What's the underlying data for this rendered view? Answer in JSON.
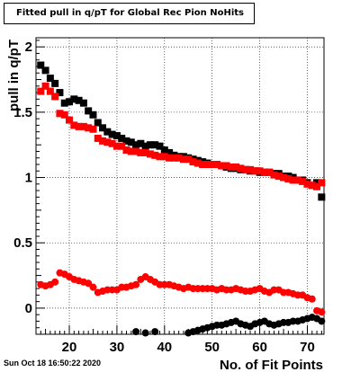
{
  "title": "Fitted pull in q/pT for Global Rec Pion NoHits",
  "timestamp": "Sun Oct 18 16:50:22 2020",
  "chart_data": {
    "type": "scatter",
    "xlabel": "No. of Fit Points",
    "ylabel": "pull in q/pT",
    "xlim": [
      13,
      73.5
    ],
    "ylim": [
      -0.2,
      2.07
    ],
    "xticks": [
      20,
      30,
      40,
      50,
      60,
      70
    ],
    "yticks": [
      0,
      0.5,
      1,
      1.5,
      2
    ],
    "xtick_labels": [
      "20",
      "30",
      "40",
      "50",
      "60",
      "70"
    ],
    "ytick_labels": [
      "0",
      "0.5",
      "1",
      "1.5",
      "2"
    ],
    "grid": true,
    "series": [
      {
        "color": "#000000",
        "marker": "square",
        "x": [
          14,
          15,
          16,
          17,
          18,
          19,
          20,
          21,
          22,
          23,
          24,
          25,
          26,
          27,
          28,
          29,
          30,
          31,
          32,
          33,
          34,
          35,
          36,
          37,
          38,
          39,
          40,
          41,
          42,
          43,
          44,
          45,
          46,
          47,
          48,
          49,
          50,
          51,
          52,
          53,
          54,
          55,
          56,
          57,
          58,
          59,
          60,
          61,
          62,
          63,
          64,
          65,
          66,
          67,
          68,
          69,
          70,
          71,
          72,
          73
        ],
        "y": [
          1.86,
          1.82,
          1.76,
          1.72,
          1.65,
          1.57,
          1.58,
          1.6,
          1.59,
          1.57,
          1.51,
          1.48,
          1.42,
          1.38,
          1.35,
          1.33,
          1.32,
          1.3,
          1.28,
          1.27,
          1.25,
          1.26,
          1.24,
          1.25,
          1.25,
          1.24,
          1.21,
          1.19,
          1.17,
          1.16,
          1.16,
          1.15,
          1.14,
          1.13,
          1.12,
          1.11,
          1.1,
          1.1,
          1.09,
          1.08,
          1.07,
          1.07,
          1.06,
          1.06,
          1.05,
          1.05,
          1.04,
          1.04,
          1.04,
          1.03,
          1.03,
          1.01,
          1.01,
          1.0,
          0.98,
          0.98,
          0.96,
          0.94,
          0.96,
          0.85
        ]
      },
      {
        "color": "#ff0000",
        "marker": "square",
        "x": [
          14,
          15,
          16,
          17,
          18,
          19,
          20,
          21,
          22,
          23,
          24,
          25,
          26,
          27,
          28,
          29,
          30,
          31,
          32,
          33,
          34,
          35,
          36,
          37,
          38,
          39,
          40,
          41,
          42,
          43,
          44,
          45,
          46,
          47,
          48,
          49,
          50,
          51,
          52,
          53,
          54,
          55,
          56,
          57,
          58,
          59,
          60,
          61,
          62,
          63,
          64,
          65,
          66,
          67,
          68,
          69,
          70,
          71,
          72,
          73
        ],
        "y": [
          1.66,
          1.7,
          1.66,
          1.62,
          1.49,
          1.48,
          1.44,
          1.4,
          1.39,
          1.39,
          1.38,
          1.37,
          1.3,
          1.28,
          1.27,
          1.26,
          1.24,
          1.24,
          1.21,
          1.2,
          1.2,
          1.19,
          1.19,
          1.18,
          1.17,
          1.16,
          1.16,
          1.15,
          1.15,
          1.15,
          1.14,
          1.14,
          1.12,
          1.11,
          1.1,
          1.1,
          1.1,
          1.1,
          1.09,
          1.09,
          1.08,
          1.08,
          1.07,
          1.06,
          1.06,
          1.05,
          1.05,
          1.04,
          1.04,
          1.02,
          1.01,
          1.0,
          0.99,
          0.98,
          0.98,
          0.97,
          0.95,
          0.94,
          0.93,
          0.96
        ]
      },
      {
        "color": "#ff0000",
        "marker": "circle",
        "x": [
          14,
          15,
          16,
          17,
          18,
          19,
          20,
          21,
          22,
          23,
          24,
          25,
          26,
          27,
          28,
          29,
          30,
          31,
          32,
          33,
          34,
          35,
          36,
          37,
          38,
          39,
          40,
          41,
          42,
          43,
          44,
          45,
          46,
          47,
          48,
          49,
          50,
          51,
          52,
          53,
          54,
          55,
          56,
          57,
          58,
          59,
          60,
          61,
          62,
          63,
          64,
          65,
          66,
          67,
          68,
          69,
          70,
          71,
          72,
          73
        ],
        "y": [
          0.18,
          0.17,
          0.18,
          0.2,
          0.27,
          0.26,
          0.24,
          0.22,
          0.21,
          0.2,
          0.19,
          0.16,
          0.12,
          0.13,
          0.14,
          0.14,
          0.14,
          0.16,
          0.16,
          0.17,
          0.18,
          0.22,
          0.24,
          0.22,
          0.2,
          0.18,
          0.18,
          0.18,
          0.17,
          0.16,
          0.15,
          0.16,
          0.15,
          0.15,
          0.15,
          0.15,
          0.15,
          0.14,
          0.15,
          0.14,
          0.14,
          0.15,
          0.14,
          0.13,
          0.13,
          0.14,
          0.15,
          0.13,
          0.12,
          0.14,
          0.14,
          0.12,
          0.12,
          0.11,
          0.1,
          0.1,
          0.08,
          0.07,
          -0.02,
          -0.03
        ]
      },
      {
        "color": "#000000",
        "marker": "circle",
        "x": [
          34,
          36,
          38,
          45,
          46,
          47,
          48,
          49,
          50,
          51,
          52,
          53,
          54,
          55,
          56,
          57,
          58,
          59,
          60,
          61,
          62,
          63,
          64,
          65,
          66,
          67,
          68,
          69,
          70,
          71,
          72,
          73
        ],
        "y": [
          -0.18,
          -0.19,
          -0.18,
          -0.19,
          -0.18,
          -0.17,
          -0.16,
          -0.15,
          -0.14,
          -0.13,
          -0.13,
          -0.12,
          -0.11,
          -0.1,
          -0.12,
          -0.13,
          -0.14,
          -0.12,
          -0.11,
          -0.1,
          -0.12,
          -0.13,
          -0.12,
          -0.11,
          -0.11,
          -0.1,
          -0.1,
          -0.09,
          -0.08,
          -0.07,
          -0.08,
          -0.1
        ]
      }
    ]
  }
}
